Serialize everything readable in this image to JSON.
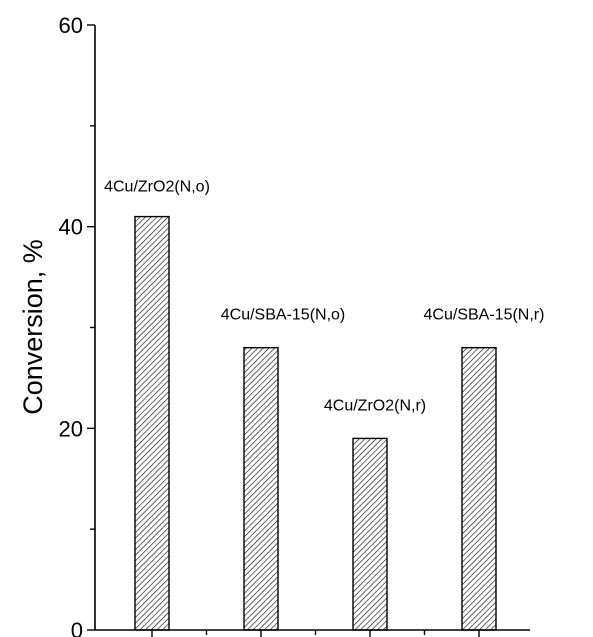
{
  "chart_data": {
    "type": "bar",
    "title": "",
    "xlabel": "",
    "ylabel": "Conversion, %",
    "ylim": [
      0,
      60
    ],
    "yticks_major": [
      0,
      20,
      40,
      60
    ],
    "yticks_minor": [
      10,
      30,
      50
    ],
    "grid": false,
    "legend": "none",
    "bar_fill": "diagonal-hatch",
    "categories": [
      "4Cu/ZrO2(N,o)",
      "4Cu/SBA-15(N,o)",
      "4Cu/ZrO2(N,r)",
      "4Cu/SBA-15(N,r)"
    ],
    "values": [
      41,
      28,
      19,
      28
    ],
    "data_labels": [
      "4Cu/ZrO2(N,o)",
      "4Cu/SBA-15(N,o)",
      "4Cu/ZrO2(N,r)",
      "4Cu/SBA-15(N,r)"
    ],
    "colors": {
      "axis": "#000000",
      "hatch": "#000000",
      "background": "#ffffff"
    }
  }
}
